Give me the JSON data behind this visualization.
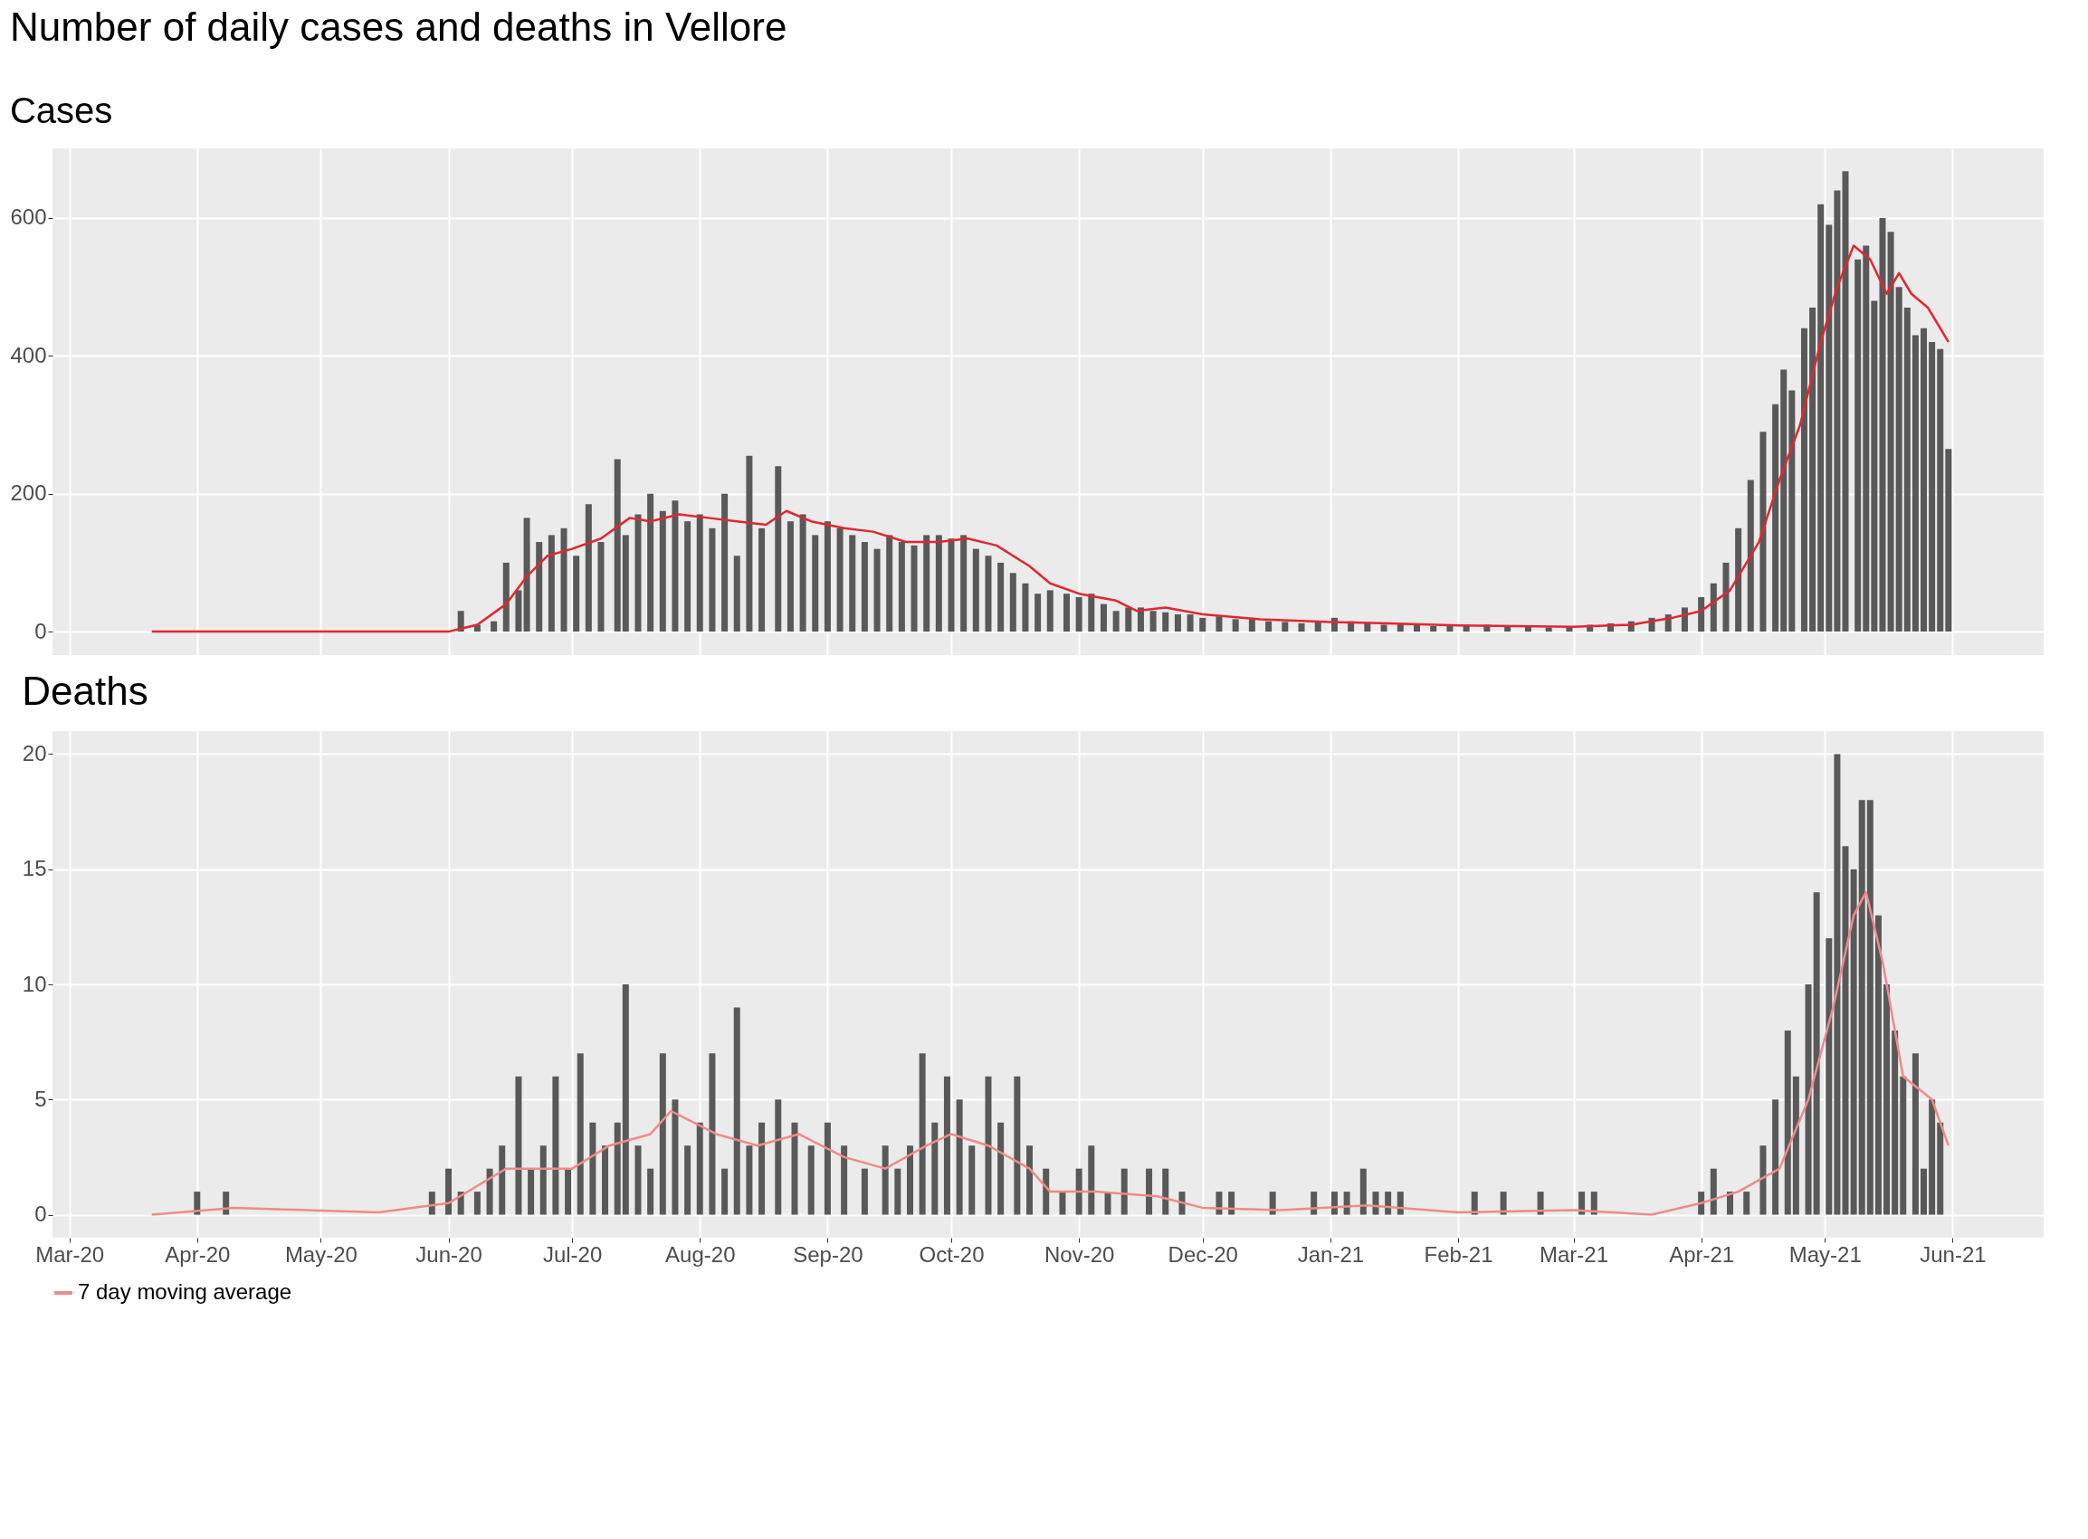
{
  "chart_data": [
    {
      "type": "bar",
      "title": "Number of daily cases and deaths in Vellore",
      "subtitle": "Cases",
      "xlim": [
        "2020-02-27",
        "2021-06-22"
      ],
      "ylim": [
        -34,
        701
      ],
      "yticks": [
        0,
        200,
        400,
        600
      ],
      "xticks": [
        {
          "value": "2020-03-01",
          "label": null
        },
        {
          "value": "2020-04-01",
          "label": null
        },
        {
          "value": "2020-05-01",
          "label": null
        },
        {
          "value": "2020-06-01",
          "label": null
        },
        {
          "value": "2020-07-01",
          "label": null
        },
        {
          "value": "2020-08-01",
          "label": null
        },
        {
          "value": "2020-09-01",
          "label": null
        },
        {
          "value": "2020-10-01",
          "label": null
        },
        {
          "value": "2020-11-01",
          "label": null
        },
        {
          "value": "2020-12-01",
          "label": null
        },
        {
          "value": "2021-01-01",
          "label": null
        },
        {
          "value": "2021-02-01",
          "label": null
        },
        {
          "value": "2021-03-01",
          "label": null
        },
        {
          "value": "2021-04-01",
          "label": null
        },
        {
          "value": "2021-05-01",
          "label": null
        },
        {
          "value": "2021-06-01",
          "label": null
        }
      ],
      "tick_labels": "y",
      "grid": true,
      "series": [
        {
          "color": "#595959",
          "x": [
            "2020-06-04",
            "2020-06-08",
            "2020-06-12",
            "2020-06-15",
            "2020-06-18",
            "2020-06-20",
            "2020-06-23",
            "2020-06-26",
            "2020-06-29",
            "2020-07-02",
            "2020-07-05",
            "2020-07-08",
            "2020-07-12",
            "2020-07-14",
            "2020-07-17",
            "2020-07-20",
            "2020-07-23",
            "2020-07-26",
            "2020-07-29",
            "2020-08-01",
            "2020-08-04",
            "2020-08-07",
            "2020-08-10",
            "2020-08-13",
            "2020-08-16",
            "2020-08-20",
            "2020-08-23",
            "2020-08-26",
            "2020-08-29",
            "2020-09-01",
            "2020-09-04",
            "2020-09-07",
            "2020-09-10",
            "2020-09-13",
            "2020-09-16",
            "2020-09-19",
            "2020-09-22",
            "2020-09-25",
            "2020-09-28",
            "2020-10-01",
            "2020-10-04",
            "2020-10-07",
            "2020-10-10",
            "2020-10-13",
            "2020-10-16",
            "2020-10-19",
            "2020-10-22",
            "2020-10-25",
            "2020-10-29",
            "2020-11-01",
            "2020-11-04",
            "2020-11-07",
            "2020-11-10",
            "2020-11-13",
            "2020-11-16",
            "2020-11-19",
            "2020-11-22",
            "2020-11-25",
            "2020-11-28",
            "2020-12-01",
            "2020-12-05",
            "2020-12-09",
            "2020-12-13",
            "2020-12-17",
            "2020-12-21",
            "2020-12-25",
            "2020-12-29",
            "2021-01-02",
            "2021-01-06",
            "2021-01-10",
            "2021-01-14",
            "2021-01-18",
            "2021-01-22",
            "2021-01-26",
            "2021-01-30",
            "2021-02-03",
            "2021-02-08",
            "2021-02-13",
            "2021-02-18",
            "2021-02-23",
            "2021-02-28",
            "2021-03-05",
            "2021-03-10",
            "2021-03-15",
            "2021-03-20",
            "2021-03-24",
            "2021-03-28",
            "2021-04-01",
            "2021-04-04",
            "2021-04-07",
            "2021-04-10",
            "2021-04-13",
            "2021-04-16",
            "2021-04-19",
            "2021-04-21",
            "2021-04-23",
            "2021-04-26",
            "2021-04-28",
            "2021-04-30",
            "2021-05-02",
            "2021-05-04",
            "2021-05-06",
            "2021-05-09",
            "2021-05-11",
            "2021-05-13",
            "2021-05-15",
            "2021-05-17",
            "2021-05-19",
            "2021-05-21",
            "2021-05-23",
            "2021-05-25",
            "2021-05-27",
            "2021-05-29",
            "2021-05-31"
          ],
          "values": [
            30,
            10,
            15,
            100,
            60,
            165,
            130,
            140,
            150,
            110,
            185,
            130,
            250,
            140,
            170,
            200,
            175,
            190,
            160,
            170,
            150,
            200,
            110,
            255,
            150,
            240,
            160,
            170,
            140,
            160,
            150,
            140,
            130,
            120,
            140,
            130,
            125,
            140,
            140,
            135,
            140,
            120,
            110,
            100,
            85,
            70,
            55,
            60,
            55,
            50,
            55,
            40,
            30,
            35,
            35,
            30,
            28,
            25,
            25,
            20,
            22,
            18,
            20,
            15,
            14,
            12,
            15,
            20,
            15,
            12,
            10,
            12,
            10,
            8,
            10,
            8,
            10,
            7,
            8,
            6,
            8,
            10,
            12,
            15,
            20,
            25,
            35,
            50,
            70,
            100,
            150,
            220,
            290,
            330,
            380,
            350,
            440,
            470,
            620,
            590,
            640,
            668,
            540,
            560,
            480,
            600,
            580,
            500,
            470,
            430,
            440,
            420,
            410,
            265
          ]
        },
        {
          "type": "line",
          "color": "#e3262e",
          "x": [
            "2020-03-21",
            "2020-06-01",
            "2020-06-08",
            "2020-06-15",
            "2020-06-20",
            "2020-06-25",
            "2020-07-01",
            "2020-07-08",
            "2020-07-15",
            "2020-07-20",
            "2020-07-27",
            "2020-08-03",
            "2020-08-10",
            "2020-08-17",
            "2020-08-22",
            "2020-08-28",
            "2020-09-05",
            "2020-09-12",
            "2020-09-20",
            "2020-09-28",
            "2020-10-05",
            "2020-10-12",
            "2020-10-20",
            "2020-10-25",
            "2020-11-01",
            "2020-11-10",
            "2020-11-15",
            "2020-11-22",
            "2020-12-01",
            "2020-12-15",
            "2021-01-01",
            "2021-01-15",
            "2021-02-01",
            "2021-02-15",
            "2021-03-01",
            "2021-03-15",
            "2021-03-25",
            "2021-04-01",
            "2021-04-08",
            "2021-04-15",
            "2021-04-20",
            "2021-04-25",
            "2021-04-30",
            "2021-05-04",
            "2021-05-08",
            "2021-05-12",
            "2021-05-16",
            "2021-05-19",
            "2021-05-22",
            "2021-05-26",
            "2021-05-30",
            "2021-05-31"
          ],
          "values": [
            0,
            0,
            10,
            40,
            80,
            110,
            120,
            135,
            165,
            160,
            170,
            165,
            160,
            155,
            175,
            160,
            150,
            145,
            130,
            130,
            135,
            125,
            95,
            70,
            55,
            45,
            30,
            35,
            25,
            18,
            14,
            12,
            9,
            8,
            7,
            10,
            20,
            30,
            60,
            130,
            220,
            300,
            420,
            500,
            560,
            540,
            490,
            520,
            490,
            470,
            430,
            420
          ]
        }
      ]
    },
    {
      "type": "bar",
      "title": "Deaths",
      "xlim": [
        "2020-02-27",
        "2021-06-22"
      ],
      "ylim": [
        -1,
        21
      ],
      "yticks": [
        0,
        5,
        10,
        15,
        20
      ],
      "xticks": [
        {
          "value": "2020-03-01",
          "label": "Mar-20"
        },
        {
          "value": "2020-04-01",
          "label": "Apr-20"
        },
        {
          "value": "2020-05-01",
          "label": "May-20"
        },
        {
          "value": "2020-06-01",
          "label": "Jun-20"
        },
        {
          "value": "2020-07-01",
          "label": "Jul-20"
        },
        {
          "value": "2020-08-01",
          "label": "Aug-20"
        },
        {
          "value": "2020-09-01",
          "label": "Sep-20"
        },
        {
          "value": "2020-10-01",
          "label": "Oct-20"
        },
        {
          "value": "2020-11-01",
          "label": "Nov-20"
        },
        {
          "value": "2020-12-01",
          "label": "Dec-20"
        },
        {
          "value": "2021-01-01",
          "label": "Jan-21"
        },
        {
          "value": "2021-02-01",
          "label": "Feb-21"
        },
        {
          "value": "2021-03-01",
          "label": "Mar-21"
        },
        {
          "value": "2021-04-01",
          "label": "Apr-21"
        },
        {
          "value": "2021-05-01",
          "label": "May-21"
        },
        {
          "value": "2021-06-01",
          "label": "Jun-21"
        }
      ],
      "grid": true,
      "legend": "bottom",
      "series": [
        {
          "color": "#595959",
          "x": [
            "2020-04-01",
            "2020-04-08",
            "2020-05-28",
            "2020-06-01",
            "2020-06-04",
            "2020-06-08",
            "2020-06-11",
            "2020-06-14",
            "2020-06-18",
            "2020-06-21",
            "2020-06-24",
            "2020-06-27",
            "2020-06-30",
            "2020-07-03",
            "2020-07-06",
            "2020-07-09",
            "2020-07-12",
            "2020-07-14",
            "2020-07-17",
            "2020-07-20",
            "2020-07-23",
            "2020-07-26",
            "2020-07-29",
            "2020-08-01",
            "2020-08-04",
            "2020-08-07",
            "2020-08-10",
            "2020-08-13",
            "2020-08-16",
            "2020-08-20",
            "2020-08-24",
            "2020-08-28",
            "2020-09-01",
            "2020-09-05",
            "2020-09-10",
            "2020-09-15",
            "2020-09-18",
            "2020-09-21",
            "2020-09-24",
            "2020-09-27",
            "2020-09-30",
            "2020-10-03",
            "2020-10-06",
            "2020-10-10",
            "2020-10-13",
            "2020-10-17",
            "2020-10-20",
            "2020-10-24",
            "2020-10-28",
            "2020-11-01",
            "2020-11-04",
            "2020-11-08",
            "2020-11-12",
            "2020-11-18",
            "2020-11-22",
            "2020-11-26",
            "2020-12-05",
            "2020-12-08",
            "2020-12-18",
            "2020-12-28",
            "2021-01-02",
            "2021-01-05",
            "2021-01-09",
            "2021-01-12",
            "2021-01-15",
            "2021-01-18",
            "2021-02-05",
            "2021-02-12",
            "2021-02-21",
            "2021-03-03",
            "2021-03-06",
            "2021-04-01",
            "2021-04-04",
            "2021-04-08",
            "2021-04-12",
            "2021-04-16",
            "2021-04-19",
            "2021-04-22",
            "2021-04-24",
            "2021-04-27",
            "2021-04-29",
            "2021-05-02",
            "2021-05-04",
            "2021-05-06",
            "2021-05-08",
            "2021-05-10",
            "2021-05-12",
            "2021-05-14",
            "2021-05-16",
            "2021-05-18",
            "2021-05-20",
            "2021-05-23",
            "2021-05-25",
            "2021-05-27",
            "2021-05-29"
          ],
          "values": [
            1,
            1,
            1,
            2,
            1,
            1,
            2,
            3,
            6,
            2,
            3,
            6,
            2,
            7,
            4,
            3,
            4,
            10,
            3,
            2,
            7,
            5,
            3,
            4,
            7,
            2,
            9,
            3,
            4,
            5,
            4,
            3,
            4,
            3,
            2,
            3,
            2,
            3,
            7,
            4,
            6,
            5,
            3,
            6,
            4,
            6,
            3,
            2,
            1,
            2,
            3,
            1,
            2,
            2,
            2,
            1,
            1,
            1,
            1,
            1,
            1,
            1,
            2,
            1,
            1,
            1,
            1,
            1,
            1,
            1,
            1,
            1,
            2,
            1,
            1,
            3,
            5,
            8,
            6,
            10,
            14,
            12,
            20,
            16,
            15,
            18,
            18,
            13,
            10,
            8,
            6,
            7,
            2,
            5,
            4
          ]
        },
        {
          "type": "line",
          "name": "7 day moving average",
          "color": "#f08a8a",
          "x": [
            "2020-03-21",
            "2020-04-10",
            "2020-05-15",
            "2020-06-01",
            "2020-06-15",
            "2020-07-01",
            "2020-07-10",
            "2020-07-20",
            "2020-07-25",
            "2020-08-05",
            "2020-08-15",
            "2020-08-25",
            "2020-09-05",
            "2020-09-15",
            "2020-09-25",
            "2020-10-01",
            "2020-10-10",
            "2020-10-20",
            "2020-10-25",
            "2020-11-05",
            "2020-11-20",
            "2020-12-01",
            "2020-12-20",
            "2021-01-10",
            "2021-02-01",
            "2021-03-01",
            "2021-03-20",
            "2021-04-01",
            "2021-04-10",
            "2021-04-20",
            "2021-04-27",
            "2021-05-03",
            "2021-05-08",
            "2021-05-11",
            "2021-05-15",
            "2021-05-20",
            "2021-05-27",
            "2021-05-31"
          ],
          "values": [
            0,
            0.3,
            0.1,
            0.5,
            2,
            2,
            3,
            3.5,
            4.5,
            3.5,
            3,
            3.5,
            2.5,
            2,
            3,
            3.5,
            3,
            2,
            1,
            1,
            0.8,
            0.3,
            0.2,
            0.4,
            0.1,
            0.2,
            0,
            0.5,
            1,
            2,
            5,
            9,
            13,
            14,
            11,
            6,
            5,
            3
          ]
        }
      ]
    }
  ]
}
